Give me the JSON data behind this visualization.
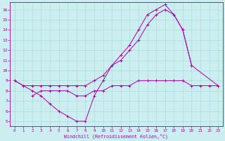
{
  "xlabel": "Windchill (Refroidissement éolien,°C)",
  "xlim": [
    -0.5,
    23.5
  ],
  "ylim": [
    4.5,
    16.7
  ],
  "xticks": [
    0,
    1,
    2,
    3,
    4,
    5,
    6,
    7,
    8,
    9,
    10,
    11,
    12,
    13,
    14,
    15,
    16,
    17,
    18,
    19,
    20,
    21,
    22,
    23
  ],
  "yticks": [
    5,
    6,
    7,
    8,
    9,
    10,
    11,
    12,
    13,
    14,
    15,
    16
  ],
  "bg_color": "#cceef0",
  "grid_color": "#aadddd",
  "line_color": "#aa00aa",
  "line1_x": [
    0,
    1,
    2,
    3,
    4,
    5,
    6,
    7,
    8,
    9,
    10,
    11,
    12,
    13,
    14,
    15,
    16,
    17,
    18,
    19,
    20
  ],
  "line1_y": [
    9.0,
    8.5,
    8.0,
    7.5,
    6.7,
    6.0,
    5.5,
    5.0,
    5.0,
    7.5,
    9.0,
    10.5,
    11.5,
    12.5,
    14.0,
    15.5,
    16.0,
    16.5,
    15.5,
    14.0,
    10.5
  ],
  "line2_x": [
    0,
    1,
    2,
    3,
    4,
    5,
    6,
    7,
    8,
    9,
    10,
    11,
    12,
    13,
    14,
    15,
    16,
    17,
    18,
    19,
    20,
    23
  ],
  "line2_y": [
    9.0,
    8.5,
    8.5,
    8.5,
    8.5,
    8.5,
    8.5,
    8.5,
    8.5,
    9.0,
    9.5,
    10.5,
    11.0,
    12.0,
    13.0,
    14.5,
    15.5,
    16.0,
    15.5,
    14.0,
    10.5,
    8.5
  ],
  "line3_x": [
    2,
    3,
    4,
    5,
    6,
    7,
    8,
    9,
    10,
    11,
    12,
    13,
    14,
    15,
    16,
    17,
    18,
    19,
    20,
    21,
    22,
    23
  ],
  "line3_y": [
    7.5,
    8.0,
    8.0,
    8.0,
    8.0,
    7.5,
    7.5,
    8.0,
    8.0,
    8.5,
    8.5,
    8.5,
    9.0,
    9.0,
    9.0,
    9.0,
    9.0,
    9.0,
    8.5,
    8.5,
    8.5,
    8.5
  ]
}
